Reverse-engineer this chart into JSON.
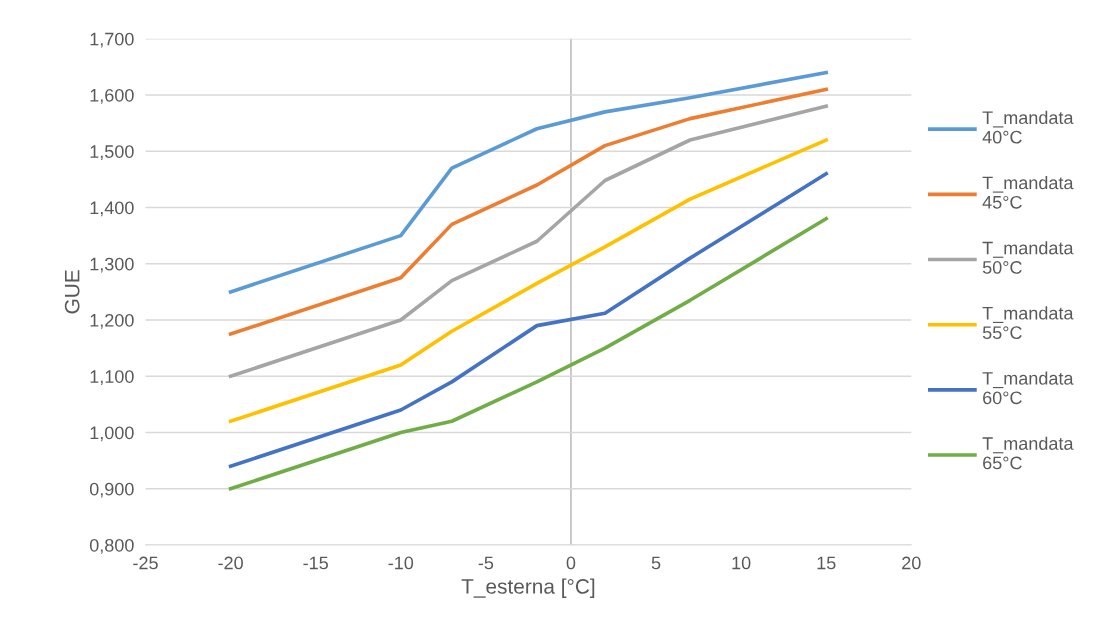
{
  "chart_data": {
    "type": "line",
    "xlabel": "T_esterna [°C]",
    "ylabel": "GUE",
    "x": [
      -20,
      -10,
      -7,
      -2,
      2,
      7,
      15
    ],
    "series": [
      {
        "name": "T_mandata\n40°C",
        "color": "#5b9bd5",
        "values": [
          1.25,
          1.35,
          1.47,
          1.54,
          1.57,
          1.595,
          1.64
        ]
      },
      {
        "name": "T_mandata\n45°C",
        "color": "#ed7d31",
        "values": [
          1.175,
          1.275,
          1.37,
          1.44,
          1.51,
          1.558,
          1.61
        ]
      },
      {
        "name": "T_mandata\n50°C",
        "color": "#a5a5a5",
        "values": [
          1.1,
          1.2,
          1.27,
          1.34,
          1.448,
          1.52,
          1.58
        ]
      },
      {
        "name": "T_mandata\n55°C",
        "color": "#ffc000",
        "values": [
          1.02,
          1.12,
          1.18,
          1.265,
          1.33,
          1.415,
          1.52
        ]
      },
      {
        "name": "T_mandata\n60°C",
        "color": "#4472c4",
        "values": [
          0.94,
          1.04,
          1.09,
          1.19,
          1.212,
          1.31,
          1.46
        ]
      },
      {
        "name": "T_mandata\n65°C",
        "color": "#70ad47",
        "values": [
          0.9,
          1.0,
          1.02,
          1.09,
          1.15,
          1.235,
          1.38
        ]
      }
    ],
    "xlim": [
      -25,
      20
    ],
    "xticks": [
      -25,
      -20,
      -15,
      -10,
      -5,
      0,
      5,
      10,
      15,
      20
    ],
    "ylim": [
      0.8,
      1.7
    ],
    "yticks": [
      {
        "value": 0.8,
        "label": "0,800"
      },
      {
        "value": 0.9,
        "label": "0,900"
      },
      {
        "value": 1.0,
        "label": "1,000"
      },
      {
        "value": 1.1,
        "label": "1,100"
      },
      {
        "value": 1.2,
        "label": "1,200"
      },
      {
        "value": 1.3,
        "label": "1,300"
      },
      {
        "value": 1.4,
        "label": "1,400"
      },
      {
        "value": 1.5,
        "label": "1,500"
      },
      {
        "value": 1.6,
        "label": "1,600"
      },
      {
        "value": 1.7,
        "label": "1,700"
      }
    ],
    "ref_lines": [
      {
        "axis": "x",
        "value": 0,
        "color": "#bfbfbf"
      }
    ],
    "grid": "y",
    "legend": "right",
    "marker": "none",
    "line_style": "solid"
  }
}
